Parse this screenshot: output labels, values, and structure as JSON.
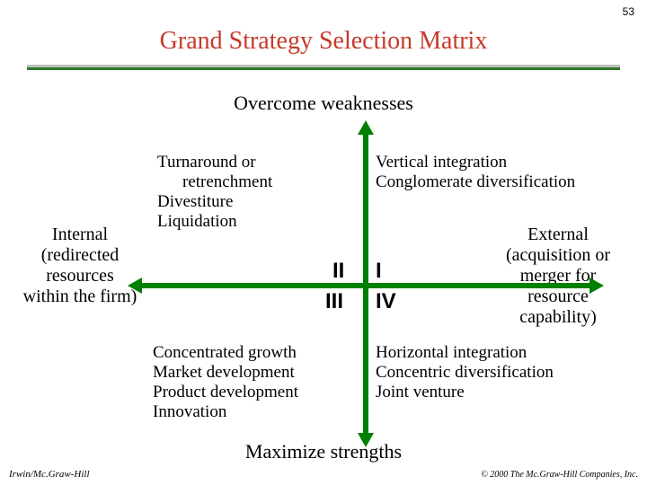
{
  "page_number": "53",
  "title": "Grand Strategy Selection Matrix",
  "colors": {
    "title": "#c63a2b",
    "bar_grey": "#bfbfbf",
    "bar_green": "#2e7a2e",
    "body_text": "#000000",
    "arrow": "#008000"
  },
  "axis": {
    "top": "Overcome weaknesses",
    "bottom": "Maximize strengths",
    "left": "Internal (redirected resources within the firm)",
    "right": "External (acquisition or merger for resource capability)"
  },
  "quadrants": {
    "II": {
      "label": "II",
      "line1": "Turnaround or",
      "line2": "retrenchment",
      "line3": "Divestiture",
      "line4": "Liquidation"
    },
    "I": {
      "label": "I",
      "line1": "Vertical integration",
      "line2": "Conglomerate diversification"
    },
    "III": {
      "label": "III",
      "line1": "Concentrated growth",
      "line2": "Market development",
      "line3": "Product development",
      "line4": "Innovation"
    },
    "IV": {
      "label": "IV",
      "line1": "Horizontal integration",
      "line2": "Concentric diversification",
      "line3": "Joint venture"
    }
  },
  "footer": {
    "left": "Irwin/Mc.Graw-Hill",
    "right": "© 2000 The Mc.Graw-Hill Companies, Inc."
  },
  "style": {
    "title_fontsize": 28,
    "axis_fontsize": 22,
    "body_fontsize": 19,
    "quad_label_fontsize": 24
  }
}
